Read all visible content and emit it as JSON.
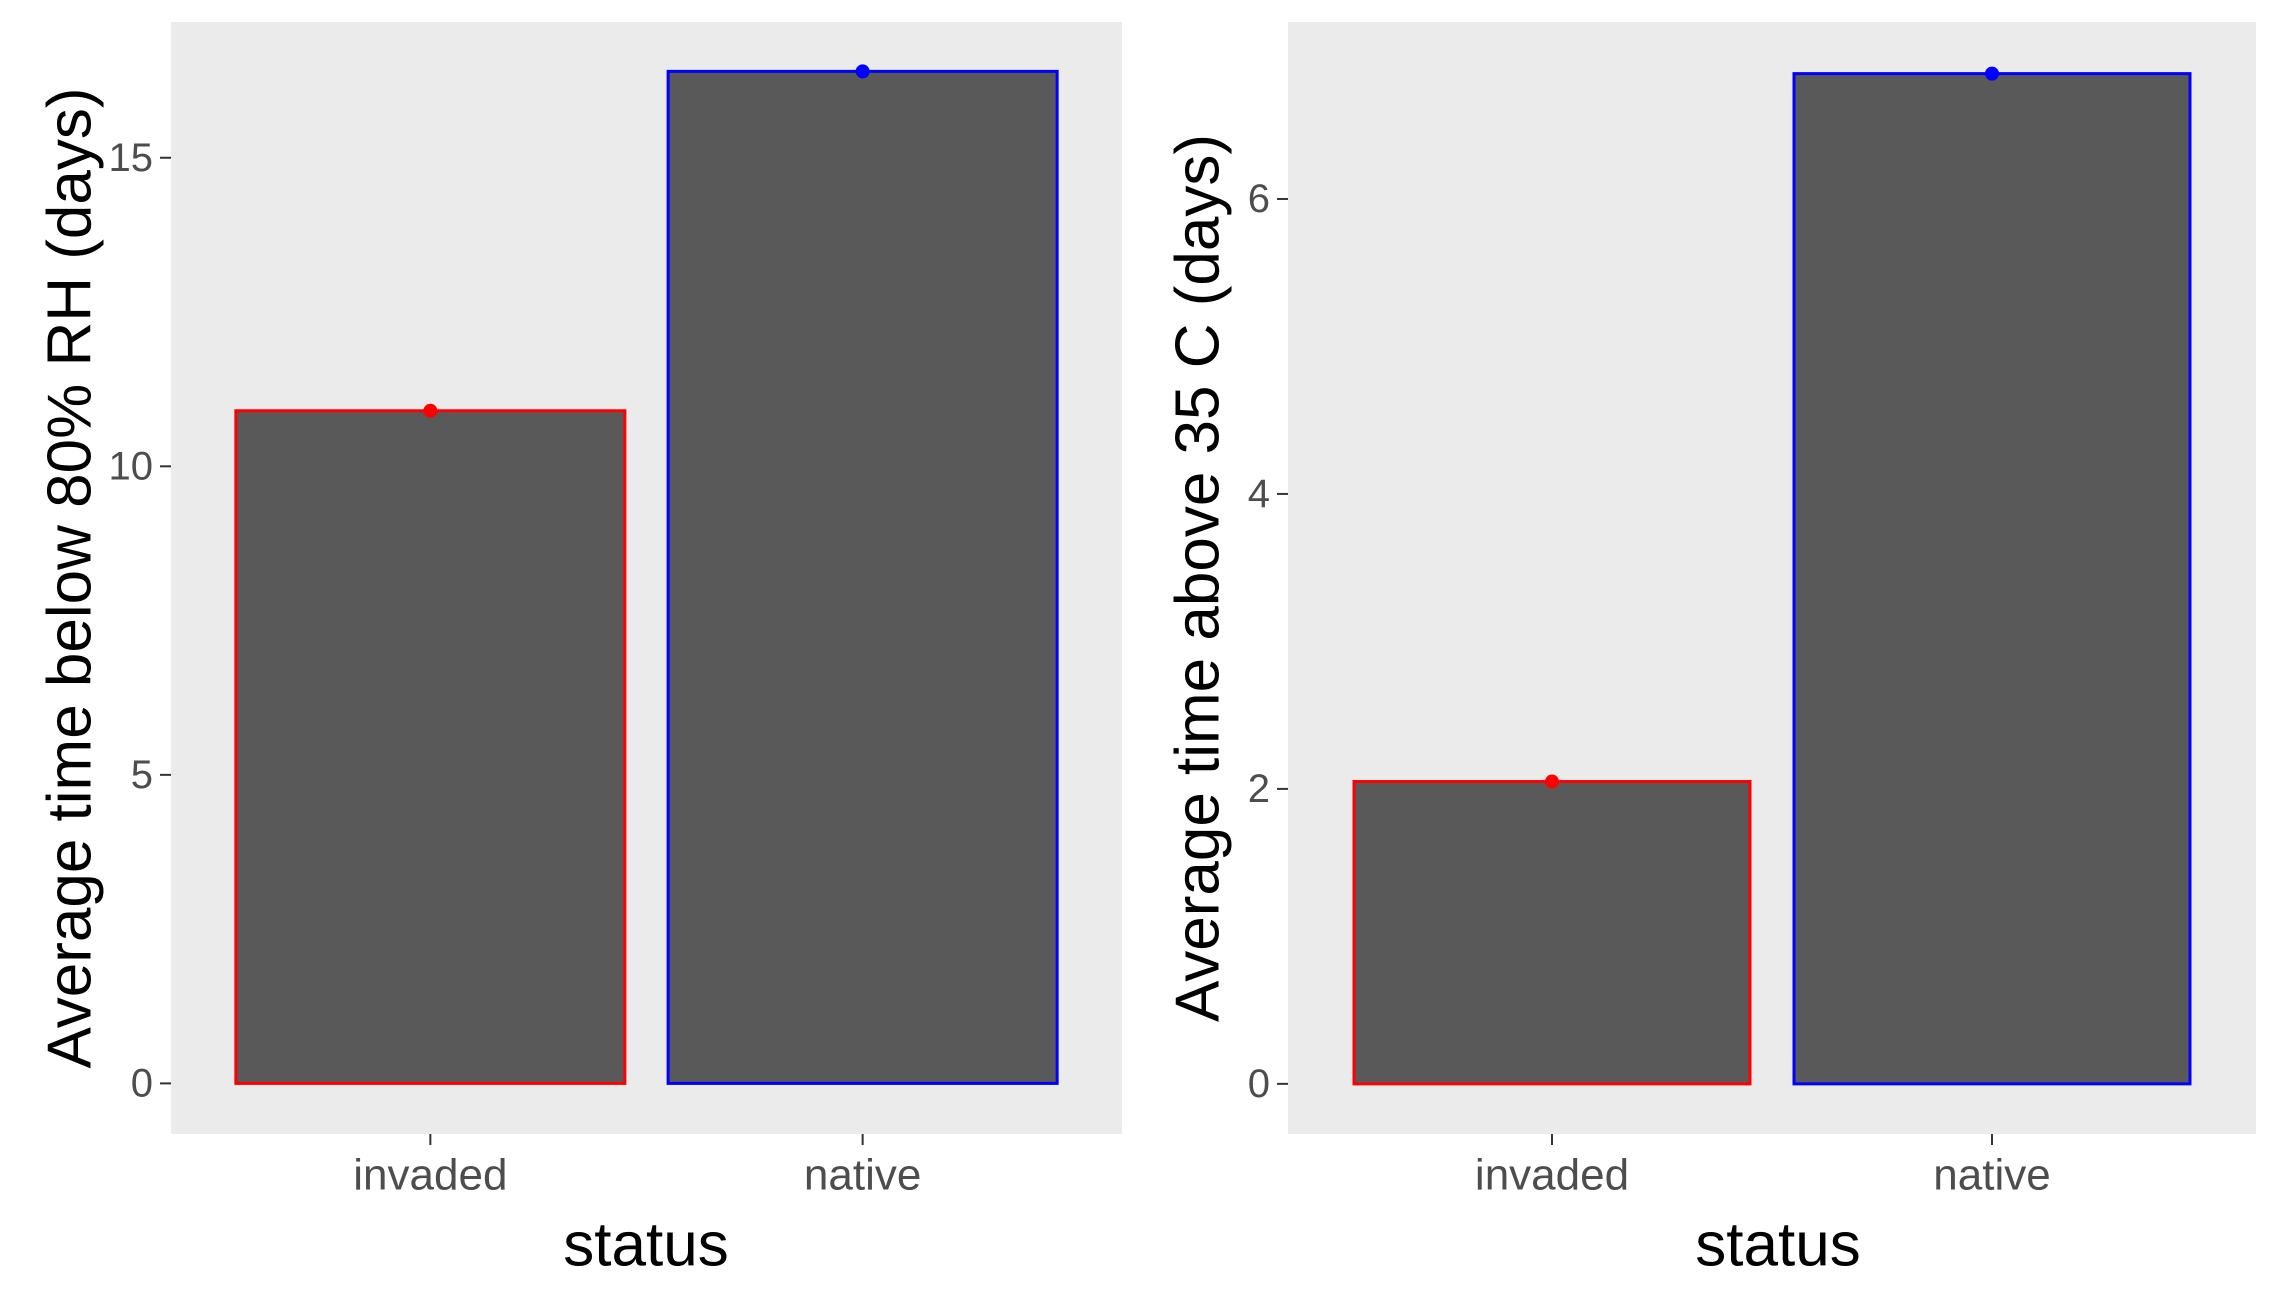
{
  "chart_data": [
    {
      "type": "bar",
      "xlabel": "status",
      "ylabel": "Average time below 80% RH (days)",
      "categories": [
        "invaded",
        "native"
      ],
      "values": [
        10.9,
        16.4
      ],
      "ylim": [
        -0.82,
        17.2
      ],
      "yticks": [
        0,
        5,
        10,
        15
      ],
      "bar_fill": "#595959",
      "bar_outline_colors": [
        "#ff0000",
        "#0000ff"
      ],
      "point_colors": [
        "#ff0000",
        "#0000ff"
      ],
      "panel_background": "#ebebeb",
      "grid": false,
      "legend": "none"
    },
    {
      "type": "bar",
      "xlabel": "status",
      "ylabel": "Average time above 35 C (days)",
      "categories": [
        "invaded",
        "native"
      ],
      "values": [
        2.05,
        6.85
      ],
      "ylim": [
        -0.34,
        7.2
      ],
      "yticks": [
        0,
        2,
        4,
        6
      ],
      "bar_fill": "#595959",
      "bar_outline_colors": [
        "#ff0000",
        "#0000ff"
      ],
      "point_colors": [
        "#ff0000",
        "#0000ff"
      ],
      "panel_background": "#ebebeb",
      "grid": false,
      "legend": "none"
    }
  ]
}
